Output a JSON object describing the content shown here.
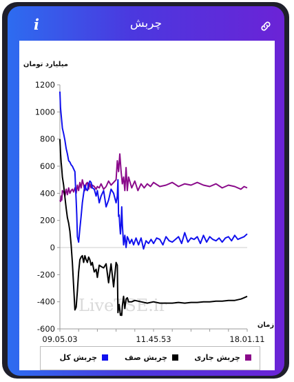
{
  "header": {
    "title": "چربش",
    "info_icon": "i"
  },
  "colors": {
    "total": "#1010ee",
    "net": "#000000",
    "current": "#8a0a8a",
    "header_gradient_start": "#2d6cf0",
    "header_gradient_end": "#6b23d6"
  },
  "legend": {
    "items": [
      {
        "label": "چربش جاری",
        "color": "#8a0a8a"
      },
      {
        "label": "چربش صف",
        "color": "#000000"
      },
      {
        "label": "چربش کل",
        "color": "#1010ee"
      }
    ]
  },
  "chart_data": {
    "type": "line",
    "ylabel": "میلیارد تومان",
    "xlabel": "زمان",
    "ylim": [
      -600,
      1200
    ],
    "yticks": [
      "1200",
      "1000",
      "800",
      "600",
      "400",
      "200",
      "0",
      "-200",
      "-400",
      "-600"
    ],
    "x_ticks": [
      "09.05.03",
      "11.45.53",
      "18.01.11"
    ],
    "watermark": "LiveTSE.ir",
    "series": [
      {
        "name": "چربش کل",
        "color": "#1010ee",
        "x": [
          0,
          1,
          2,
          3,
          4,
          6,
          8,
          10,
          12,
          14,
          16,
          18,
          20,
          22,
          24,
          25,
          26,
          27,
          28,
          30,
          32,
          34,
          36,
          38,
          40,
          42,
          44,
          46,
          48,
          50,
          52,
          55,
          58,
          60,
          63,
          66,
          70,
          74,
          78,
          82,
          86,
          90,
          92,
          93,
          94,
          95,
          96,
          97,
          98,
          99,
          100,
          102,
          104,
          106,
          108,
          110,
          112,
          115,
          118,
          122,
          126,
          130,
          134,
          138,
          142,
          146,
          150,
          155,
          160,
          165,
          170,
          175,
          180,
          185,
          190,
          195,
          200,
          205,
          210,
          215,
          220,
          225,
          230,
          235,
          240,
          245,
          250,
          255,
          260,
          265,
          270,
          275,
          280,
          285,
          290,
          295,
          300
        ],
        "y": [
          1150,
          1030,
          980,
          930,
          880,
          840,
          790,
          730,
          690,
          640,
          630,
          610,
          600,
          580,
          560,
          450,
          350,
          240,
          80,
          40,
          140,
          230,
          330,
          400,
          460,
          430,
          420,
          470,
          490,
          480,
          440,
          430,
          380,
          420,
          330,
          380,
          420,
          300,
          350,
          430,
          400,
          330,
          380,
          500,
          230,
          240,
          160,
          100,
          170,
          300,
          170,
          20,
          90,
          0,
          80,
          60,
          30,
          60,
          20,
          70,
          20,
          70,
          -10,
          50,
          30,
          60,
          30,
          70,
          60,
          20,
          80,
          50,
          40,
          60,
          80,
          30,
          110,
          40,
          70,
          60,
          80,
          30,
          90,
          40,
          80,
          60,
          50,
          70,
          40,
          70,
          80,
          50,
          90,
          60,
          70,
          80,
          100
        ]
      },
      {
        "name": "چربش صف",
        "color": "#000000",
        "x": [
          0,
          1,
          2,
          3,
          4,
          6,
          8,
          10,
          12,
          14,
          16,
          18,
          20,
          22,
          24,
          26,
          28,
          30,
          32,
          34,
          36,
          38,
          40,
          42,
          44,
          46,
          48,
          50,
          52,
          55,
          58,
          60,
          63,
          66,
          70,
          74,
          78,
          82,
          86,
          90,
          92,
          93,
          94,
          95,
          96,
          97,
          98,
          99,
          100,
          102,
          104,
          106,
          108,
          110,
          115,
          120,
          130,
          140,
          150,
          160,
          170,
          180,
          190,
          200,
          210,
          220,
          230,
          240,
          250,
          260,
          270,
          280,
          290,
          295,
          300
        ],
        "y": [
          800,
          700,
          630,
          580,
          520,
          460,
          370,
          290,
          220,
          180,
          120,
          20,
          -110,
          -280,
          -460,
          -440,
          -320,
          -180,
          -90,
          -70,
          -60,
          -110,
          -60,
          -90,
          -110,
          -70,
          -90,
          -130,
          -110,
          -180,
          -160,
          -220,
          -130,
          -140,
          -150,
          -120,
          -260,
          -120,
          -290,
          -110,
          -130,
          -480,
          -440,
          -420,
          -460,
          -500,
          -490,
          -500,
          -430,
          -360,
          -450,
          -380,
          -370,
          -400,
          -400,
          -390,
          -400,
          -410,
          -400,
          -410,
          -410,
          -410,
          -405,
          -410,
          -405,
          -405,
          -400,
          -400,
          -395,
          -395,
          -390,
          -390,
          -380,
          -370,
          -360
        ]
      },
      {
        "name": "چربش جاری",
        "color": "#8a0a8a",
        "x": [
          0,
          1,
          2,
          3,
          4,
          6,
          8,
          10,
          12,
          14,
          16,
          18,
          20,
          22,
          24,
          26,
          28,
          30,
          32,
          34,
          36,
          38,
          40,
          42,
          44,
          46,
          48,
          50,
          52,
          55,
          58,
          60,
          63,
          66,
          70,
          74,
          78,
          82,
          86,
          90,
          92,
          94,
          96,
          98,
          100,
          102,
          104,
          106,
          108,
          110,
          115,
          120,
          125,
          130,
          135,
          140,
          145,
          150,
          160,
          170,
          180,
          190,
          200,
          210,
          220,
          230,
          240,
          250,
          260,
          270,
          280,
          290,
          295,
          300
        ],
        "y": [
          350,
          340,
          380,
          350,
          420,
          410,
          380,
          430,
          390,
          440,
          400,
          420,
          430,
          410,
          440,
          400,
          460,
          420,
          480,
          440,
          500,
          460,
          420,
          470,
          480,
          430,
          470,
          440,
          460,
          450,
          430,
          450,
          440,
          470,
          430,
          450,
          490,
          460,
          480,
          500,
          640,
          560,
          690,
          560,
          470,
          520,
          420,
          590,
          420,
          520,
          440,
          490,
          420,
          470,
          440,
          470,
          450,
          480,
          450,
          460,
          480,
          450,
          470,
          460,
          480,
          460,
          450,
          470,
          440,
          460,
          450,
          430,
          450,
          440
        ]
      }
    ]
  }
}
